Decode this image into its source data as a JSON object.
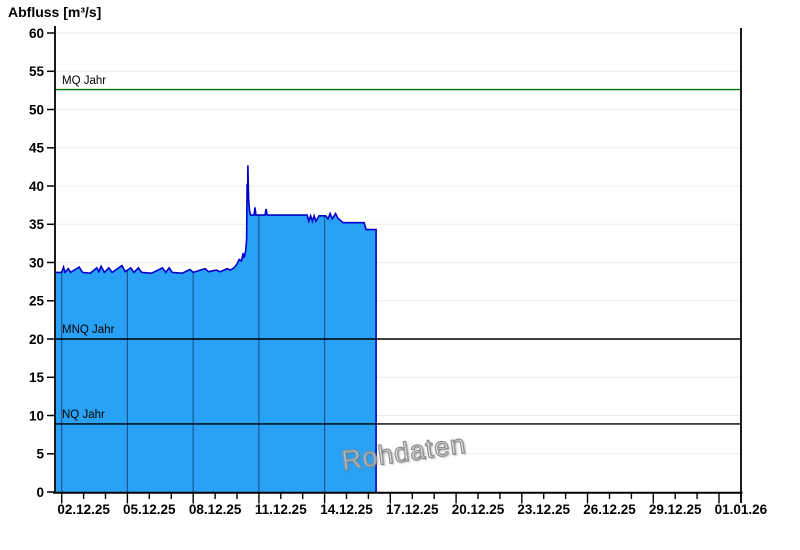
{
  "title": "Abfluss [m³/s]",
  "watermark": "Rohdaten",
  "colors": {
    "series_fill": "#29A2F5",
    "series_line": "#0000CC",
    "mq_line_green": "#007200",
    "reference_black": "#000000",
    "grid_light": "#ECECEC",
    "grid_dark_over_fill": "rgba(0,0,30,0.45)",
    "axis": "#000000",
    "watermark_gray": "#8F8F8F"
  },
  "chart_data": {
    "type": "area",
    "title": "Abfluss [m³/s]",
    "ylabel": "Abfluss [m³/s]",
    "unit": "m³/s",
    "ylim": [
      0,
      60
    ],
    "y_ticks": [
      0,
      5,
      10,
      15,
      20,
      25,
      30,
      35,
      40,
      45,
      50,
      55,
      60
    ],
    "x_tick_labels": [
      "02.12.25",
      "05.12.25",
      "08.12.25",
      "11.12.25",
      "14.12.25",
      "17.12.25",
      "20.12.25",
      "23.12.25",
      "26.12.25",
      "29.12.25",
      "01.01.26"
    ],
    "x_axis": {
      "start_day": "01.12.25",
      "end_day": "01.01.26",
      "days_total": 31,
      "minor_tick_every_days": 1,
      "gridline_every_days": 3
    },
    "grid": {
      "horizontal": true,
      "vertical_only_inside_series": true
    },
    "legend_position": "none",
    "reference_lines": [
      {
        "label": "MQ Jahr",
        "value": 52.6,
        "color": "#007200"
      },
      {
        "label": "MNQ Jahr",
        "value": 20.0,
        "color": "#000000"
      },
      {
        "label": "NQ Jahr",
        "value": 8.9,
        "color": "#000000"
      }
    ],
    "series": [
      {
        "name": "Rohdaten",
        "x_unit": "days_since_01.12.25_00:00",
        "points": [
          [
            -0.26,
            28.7
          ],
          [
            0.0,
            28.7
          ],
          [
            0.08,
            29.4
          ],
          [
            0.15,
            28.7
          ],
          [
            0.3,
            29.2
          ],
          [
            0.4,
            28.7
          ],
          [
            0.8,
            29.4
          ],
          [
            0.95,
            28.7
          ],
          [
            1.3,
            28.6
          ],
          [
            1.6,
            29.3
          ],
          [
            1.7,
            28.8
          ],
          [
            1.8,
            29.5
          ],
          [
            1.95,
            28.7
          ],
          [
            2.15,
            29.3
          ],
          [
            2.3,
            28.7
          ],
          [
            2.75,
            29.6
          ],
          [
            2.9,
            28.8
          ],
          [
            3.15,
            29.3
          ],
          [
            3.3,
            28.7
          ],
          [
            3.5,
            29.3
          ],
          [
            3.65,
            28.7
          ],
          [
            4.1,
            28.6
          ],
          [
            4.6,
            29.3
          ],
          [
            4.75,
            28.7
          ],
          [
            4.9,
            29.3
          ],
          [
            5.05,
            28.7
          ],
          [
            5.5,
            28.6
          ],
          [
            5.85,
            29.1
          ],
          [
            6.0,
            28.7
          ],
          [
            6.55,
            29.2
          ],
          [
            6.7,
            28.8
          ],
          [
            7.05,
            29.0
          ],
          [
            7.25,
            28.8
          ],
          [
            7.55,
            29.2
          ],
          [
            7.7,
            29.0
          ],
          [
            7.9,
            29.4
          ],
          [
            8.0,
            29.8
          ],
          [
            8.1,
            30.4
          ],
          [
            8.2,
            30.2
          ],
          [
            8.28,
            31.2
          ],
          [
            8.33,
            30.6
          ],
          [
            8.4,
            31.6
          ],
          [
            8.44,
            33.0
          ],
          [
            8.46,
            40.3
          ],
          [
            8.48,
            38.0
          ],
          [
            8.5,
            42.7
          ],
          [
            8.53,
            38.3
          ],
          [
            8.57,
            36.8
          ],
          [
            8.62,
            36.2
          ],
          [
            8.78,
            36.2
          ],
          [
            8.82,
            37.2
          ],
          [
            8.87,
            36.2
          ],
          [
            9.28,
            36.2
          ],
          [
            9.33,
            37.0
          ],
          [
            9.38,
            36.2
          ],
          [
            10.9,
            36.2
          ],
          [
            11.2,
            36.2
          ],
          [
            11.28,
            35.4
          ],
          [
            11.36,
            36.1
          ],
          [
            11.44,
            35.4
          ],
          [
            11.52,
            36.1
          ],
          [
            11.6,
            35.4
          ],
          [
            11.75,
            36.1
          ],
          [
            12.05,
            36.1
          ],
          [
            12.15,
            35.7
          ],
          [
            12.25,
            36.4
          ],
          [
            12.35,
            35.7
          ],
          [
            12.5,
            36.4
          ],
          [
            12.6,
            35.8
          ],
          [
            12.85,
            35.2
          ],
          [
            13.8,
            35.2
          ],
          [
            13.9,
            34.3
          ],
          [
            14.35,
            34.3
          ]
        ]
      }
    ]
  }
}
